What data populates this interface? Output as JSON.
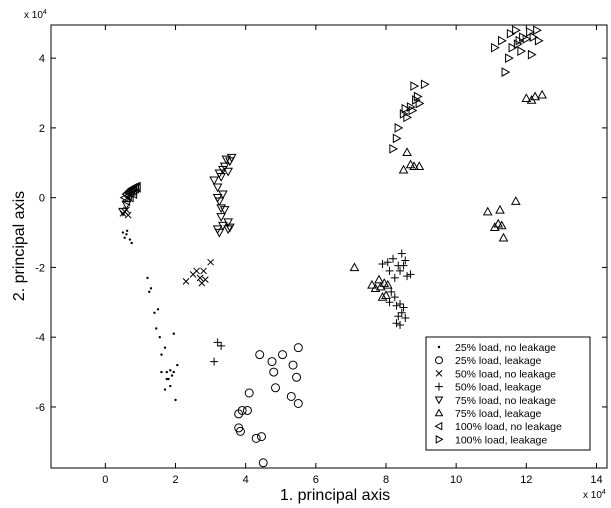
{
  "chart_data": {
    "type": "scatter",
    "xlabel": "1. principal axis",
    "ylabel": "2. principal axis",
    "x_multiplier": "x 10",
    "x_multiplier_exp": "4",
    "y_multiplier": "x 10",
    "y_multiplier_exp": "4",
    "xlim": [
      -1.55,
      14.3
    ],
    "ylim": [
      -7.75,
      4.95
    ],
    "x_ticks": [
      0,
      2,
      4,
      6,
      8,
      10,
      12,
      14
    ],
    "y_ticks": [
      -6,
      -4,
      -2,
      0,
      2,
      4
    ],
    "grid": false,
    "legend_position": "bottom-right",
    "series": [
      {
        "name": "25% load, no leakage",
        "marker": "dot",
        "points": [
          [
            0.5,
            -1.0
          ],
          [
            0.55,
            -1.15
          ],
          [
            0.62,
            -0.95
          ],
          [
            0.7,
            -1.2
          ],
          [
            0.6,
            -1.05
          ],
          [
            0.75,
            -1.3
          ],
          [
            1.2,
            -2.3
          ],
          [
            1.25,
            -2.7
          ],
          [
            1.3,
            -2.6
          ],
          [
            1.4,
            -3.3
          ],
          [
            1.5,
            -3.2
          ],
          [
            1.45,
            -3.75
          ],
          [
            1.55,
            -4.0
          ],
          [
            1.6,
            -4.5
          ],
          [
            1.6,
            -5.0
          ],
          [
            1.7,
            -4.3
          ],
          [
            1.75,
            -5.0
          ],
          [
            1.8,
            -5.2
          ],
          [
            1.85,
            -5.4
          ],
          [
            1.9,
            -5.1
          ],
          [
            1.95,
            -3.9
          ],
          [
            2.0,
            -5.8
          ],
          [
            1.7,
            -5.5
          ],
          [
            1.85,
            -4.95
          ],
          [
            1.95,
            -5.0
          ],
          [
            2.05,
            -4.8
          ],
          [
            1.75,
            -5.2
          ]
        ]
      },
      {
        "name": "25% load, leakage",
        "marker": "circle",
        "points": [
          [
            3.8,
            -6.2
          ],
          [
            3.85,
            -6.7
          ],
          [
            3.8,
            -6.6
          ],
          [
            3.9,
            -6.1
          ],
          [
            4.05,
            -6.1
          ],
          [
            4.1,
            -5.6
          ],
          [
            4.3,
            -6.9
          ],
          [
            4.4,
            -4.5
          ],
          [
            4.45,
            -6.85
          ],
          [
            4.5,
            -7.6
          ],
          [
            4.75,
            -4.7
          ],
          [
            4.8,
            -5.0
          ],
          [
            4.85,
            -5.45
          ],
          [
            5.05,
            -4.5
          ],
          [
            5.35,
            -4.8
          ],
          [
            5.3,
            -5.7
          ],
          [
            5.45,
            -5.15
          ],
          [
            5.5,
            -4.3
          ],
          [
            5.5,
            -5.9
          ]
        ]
      },
      {
        "name": "50% load, no leakage",
        "marker": "x",
        "points": [
          [
            0.5,
            -0.45
          ],
          [
            0.6,
            -0.35
          ],
          [
            0.65,
            -0.5
          ],
          [
            0.55,
            -0.4
          ],
          [
            2.3,
            -2.4
          ],
          [
            2.5,
            -2.2
          ],
          [
            2.6,
            -2.1
          ],
          [
            2.7,
            -2.3
          ],
          [
            2.75,
            -2.45
          ],
          [
            2.8,
            -2.1
          ],
          [
            2.85,
            -2.35
          ],
          [
            3.0,
            -1.85
          ]
        ]
      },
      {
        "name": "50% load, leakage",
        "marker": "plus",
        "points": [
          [
            3.1,
            -4.7
          ],
          [
            3.2,
            -4.15
          ],
          [
            3.3,
            -4.25
          ],
          [
            7.9,
            -1.9
          ],
          [
            8.05,
            -1.85
          ],
          [
            8.1,
            -2.1
          ],
          [
            8.2,
            -1.75
          ],
          [
            8.25,
            -2.3
          ],
          [
            8.35,
            -1.95
          ],
          [
            8.4,
            -2.1
          ],
          [
            8.45,
            -1.6
          ],
          [
            8.5,
            -1.95
          ],
          [
            8.55,
            -1.8
          ],
          [
            8.6,
            -2.25
          ],
          [
            8.7,
            -2.2
          ],
          [
            8.15,
            -2.7
          ],
          [
            8.25,
            -2.85
          ],
          [
            8.3,
            -3.1
          ],
          [
            8.4,
            -3.05
          ],
          [
            8.45,
            -3.3
          ],
          [
            8.5,
            -3.15
          ],
          [
            8.55,
            -3.45
          ],
          [
            8.4,
            -3.65
          ],
          [
            8.3,
            -3.6
          ],
          [
            8.35,
            -3.4
          ],
          [
            8.1,
            -3.0
          ]
        ]
      },
      {
        "name": "75% load, no leakage",
        "marker": "triangle-down",
        "points": [
          [
            0.5,
            -0.4
          ],
          [
            0.6,
            -0.2
          ],
          [
            3.1,
            0.5
          ],
          [
            3.2,
            0.3
          ],
          [
            3.25,
            0.7
          ],
          [
            3.3,
            0.6
          ],
          [
            3.35,
            0.8
          ],
          [
            3.4,
            0.9
          ],
          [
            3.45,
            1.1
          ],
          [
            3.5,
            0.75
          ],
          [
            3.55,
            1.05
          ],
          [
            3.6,
            1.15
          ],
          [
            3.2,
            0.0
          ],
          [
            3.25,
            -0.1
          ],
          [
            3.3,
            -0.3
          ],
          [
            3.35,
            0.1
          ],
          [
            3.4,
            -0.35
          ],
          [
            3.3,
            -0.55
          ],
          [
            3.5,
            -0.7
          ],
          [
            3.2,
            -0.9
          ],
          [
            3.35,
            -0.8
          ],
          [
            3.5,
            -0.9
          ],
          [
            3.55,
            -0.85
          ],
          [
            3.25,
            -1.0
          ]
        ]
      },
      {
        "name": "75% load, leakage",
        "marker": "triangle-up",
        "points": [
          [
            7.1,
            -2.0
          ],
          [
            7.6,
            -2.5
          ],
          [
            7.7,
            -2.6
          ],
          [
            7.8,
            -2.35
          ],
          [
            7.85,
            -2.55
          ],
          [
            7.9,
            -2.85
          ],
          [
            7.95,
            -2.45
          ],
          [
            8.0,
            -2.8
          ],
          [
            8.05,
            -2.5
          ],
          [
            8.5,
            0.8
          ],
          [
            8.6,
            1.3
          ],
          [
            8.7,
            0.95
          ],
          [
            8.8,
            0.9
          ],
          [
            8.95,
            0.9
          ],
          [
            10.9,
            -0.4
          ],
          [
            11.1,
            -0.85
          ],
          [
            11.2,
            -0.75
          ],
          [
            11.25,
            -0.35
          ],
          [
            11.3,
            -0.8
          ],
          [
            11.35,
            -1.15
          ],
          [
            11.7,
            -0.1
          ],
          [
            12.0,
            2.85
          ],
          [
            12.15,
            2.8
          ],
          [
            12.25,
            2.9
          ],
          [
            12.45,
            2.95
          ]
        ]
      },
      {
        "name": "100% load, no leakage",
        "marker": "triangle-left",
        "points": [
          [
            0.55,
            0.0
          ],
          [
            0.6,
            0.1
          ],
          [
            0.65,
            0.15
          ],
          [
            0.7,
            0.2
          ],
          [
            0.75,
            0.25
          ],
          [
            0.8,
            0.28
          ],
          [
            0.85,
            0.3
          ],
          [
            0.9,
            0.32
          ],
          [
            0.65,
            0.05
          ],
          [
            0.7,
            0.12
          ],
          [
            0.75,
            0.18
          ],
          [
            0.8,
            0.2
          ],
          [
            0.85,
            0.25
          ],
          [
            0.9,
            0.28
          ],
          [
            0.6,
            -0.1
          ],
          [
            0.7,
            0.0
          ],
          [
            0.8,
            0.1
          ]
        ]
      },
      {
        "name": "100% load, leakage",
        "marker": "triangle-right",
        "points": [
          [
            8.2,
            1.4
          ],
          [
            8.3,
            1.7
          ],
          [
            8.35,
            2.0
          ],
          [
            8.5,
            2.4
          ],
          [
            8.55,
            2.55
          ],
          [
            8.6,
            2.3
          ],
          [
            8.7,
            2.6
          ],
          [
            8.75,
            2.5
          ],
          [
            8.8,
            3.2
          ],
          [
            8.85,
            2.8
          ],
          [
            8.9,
            2.9
          ],
          [
            8.95,
            2.7
          ],
          [
            9.1,
            3.25
          ],
          [
            11.1,
            4.3
          ],
          [
            11.3,
            4.5
          ],
          [
            11.4,
            3.6
          ],
          [
            11.5,
            4.0
          ],
          [
            11.55,
            4.7
          ],
          [
            11.6,
            4.3
          ],
          [
            11.7,
            4.8
          ],
          [
            11.75,
            4.4
          ],
          [
            11.8,
            4.5
          ],
          [
            11.85,
            4.2
          ],
          [
            11.9,
            4.6
          ],
          [
            12.0,
            4.55
          ],
          [
            12.1,
            4.75
          ],
          [
            12.15,
            4.1
          ],
          [
            12.2,
            4.6
          ],
          [
            12.3,
            4.8
          ],
          [
            12.35,
            4.5
          ]
        ]
      }
    ]
  }
}
